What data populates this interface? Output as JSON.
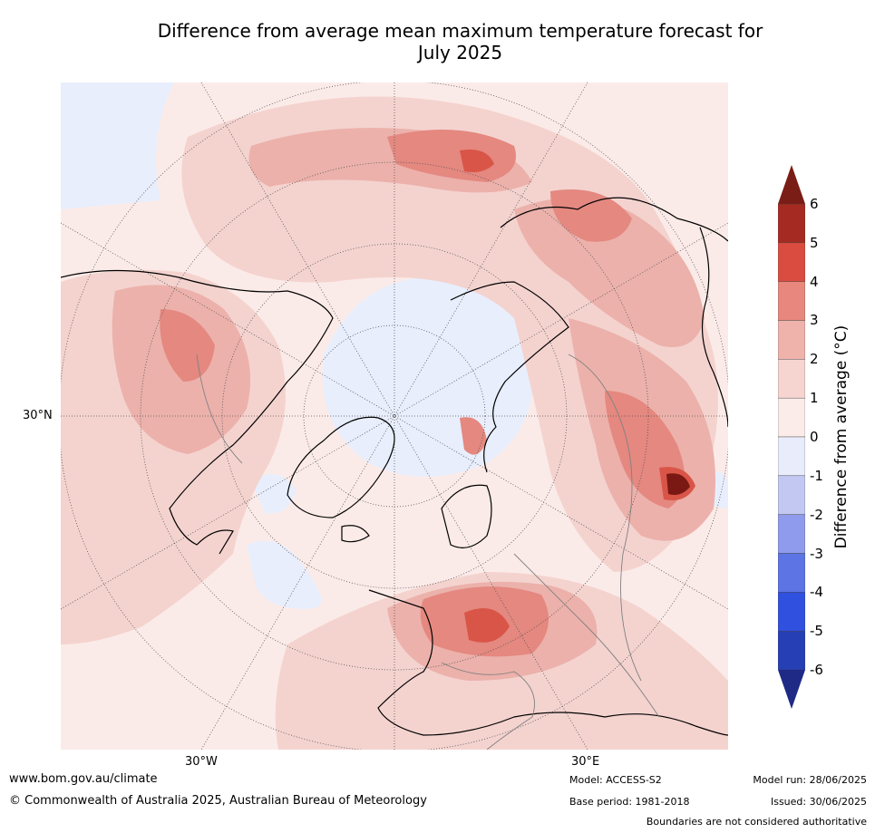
{
  "title_line1": "Difference from average mean maximum temperature forecast for",
  "title_line2": "July 2025",
  "map": {
    "projection": "north-polar-stereographic",
    "lat_label": "30°N",
    "lon_labels": [
      "30°W",
      "30°E"
    ],
    "colors": {
      "land_line": "#000000",
      "border_line": "#808080",
      "grid_line": "#555555",
      "neg1": "#e8eefc",
      "pos1": "#fbebe8",
      "pos2": "#f4d3cf",
      "pos3": "#ecb1ab",
      "pos4": "#e48880",
      "pos5": "#d95548",
      "pos6": "#b42a22",
      "pos7": "#7a1913"
    }
  },
  "colorbar": {
    "label": "Difference from average (°C)",
    "ticks": [
      "6",
      "5",
      "4",
      "3",
      "2",
      "1",
      "0",
      "-1",
      "-2",
      "-3",
      "-4",
      "-5",
      "-6"
    ],
    "bands": [
      "#a52a22",
      "#d94c3f",
      "#e8877d",
      "#efb3ac",
      "#f6d5d1",
      "#fbecea",
      "#e9ecfb",
      "#c2c8f2",
      "#8f9bec",
      "#5c74e4",
      "#3050e0",
      "#263fb5"
    ],
    "top_arrow": "#7a1d16",
    "bottom_arrow": "#1f2a86"
  },
  "footer": {
    "website": "www.bom.gov.au/climate",
    "copyright": "© Commonwealth of Australia 2025, Australian Bureau of Meteorology",
    "model": "Model: ACCESS-S2",
    "base_period": "Base period: 1981-2018",
    "model_run": "Model run: 28/06/2025",
    "issued": "Issued: 30/06/2025",
    "disclaimer": "Boundaries are not considered authoritative"
  }
}
